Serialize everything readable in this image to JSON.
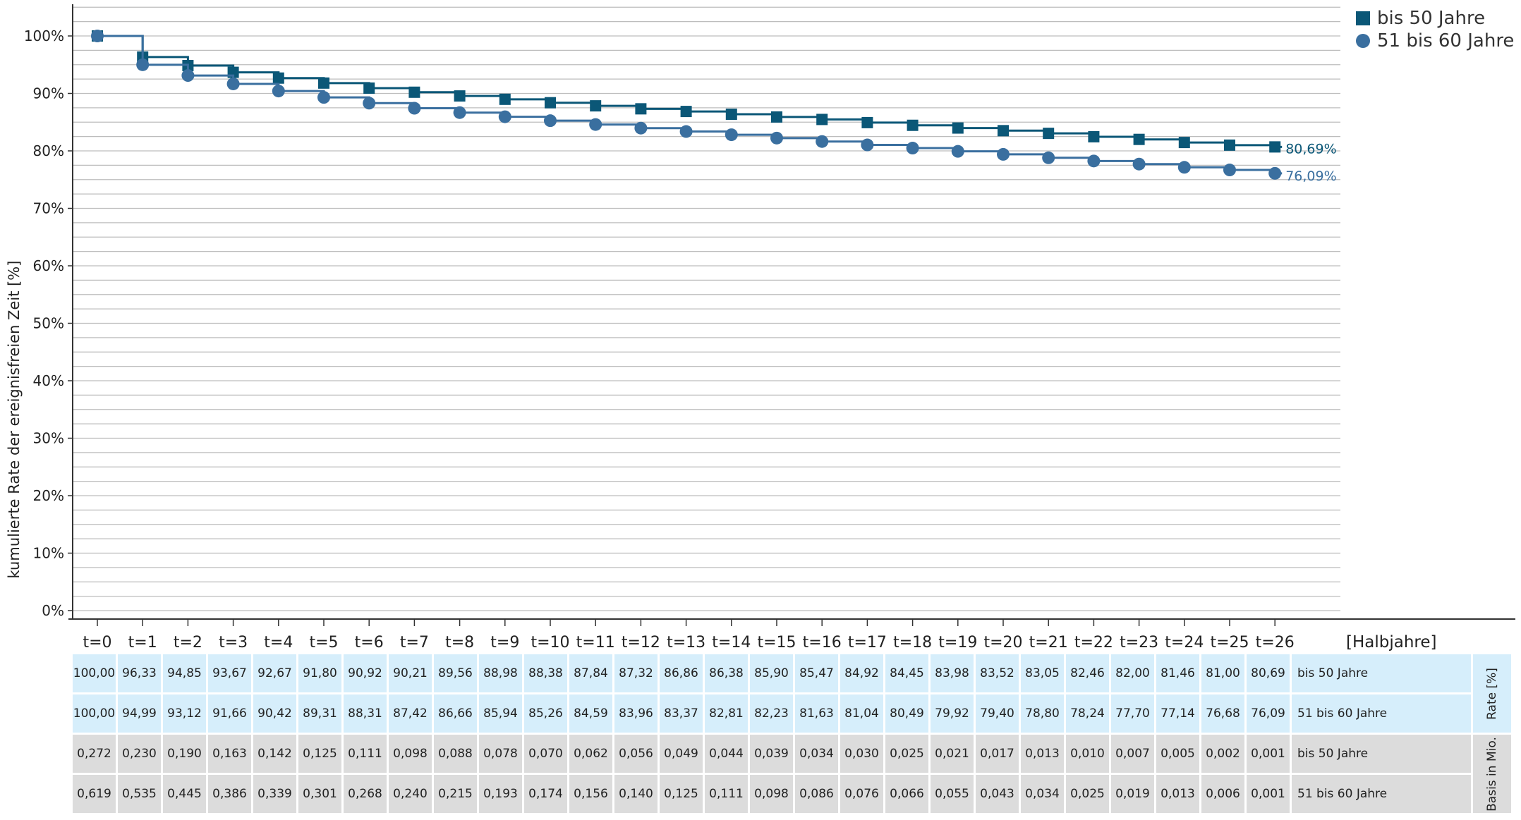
{
  "chart_data": {
    "type": "line",
    "step": true,
    "ylabel": "kumulierte Rate der ereignisfreien Zeit [%]",
    "xlabel": "[Halbjahre]",
    "ylim": [
      0,
      100
    ],
    "y_ticks": [
      "0%",
      "10%",
      "20%",
      "30%",
      "40%",
      "50%",
      "60%",
      "70%",
      "80%",
      "90%",
      "100%"
    ],
    "x": [
      "t=0",
      "t=1",
      "t=2",
      "t=3",
      "t=4",
      "t=5",
      "t=6",
      "t=7",
      "t=8",
      "t=9",
      "t=10",
      "t=11",
      "t=12",
      "t=13",
      "t=14",
      "t=15",
      "t=16",
      "t=17",
      "t=18",
      "t=19",
      "t=20",
      "t=21",
      "t=22",
      "t=23",
      "t=24",
      "t=25",
      "t=26"
    ],
    "grid": true,
    "legend_position": "top-right",
    "series": [
      {
        "name": "bis 50 Jahre",
        "marker": "square",
        "color": "#0b5777",
        "end_label": "80,69%",
        "values": [
          100.0,
          96.33,
          94.85,
          93.67,
          92.67,
          91.8,
          90.92,
          90.21,
          89.56,
          88.98,
          88.38,
          87.84,
          87.32,
          86.86,
          86.38,
          85.9,
          85.47,
          84.92,
          84.45,
          83.98,
          83.52,
          83.05,
          82.46,
          82.0,
          81.46,
          81.0,
          80.69
        ]
      },
      {
        "name": "51 bis 60 Jahre",
        "marker": "circle",
        "color": "#3a6f9f",
        "end_label": "76,09%",
        "values": [
          100.0,
          94.99,
          93.12,
          91.66,
          90.42,
          89.31,
          88.31,
          87.42,
          86.66,
          85.94,
          85.26,
          84.59,
          83.96,
          83.37,
          82.81,
          82.23,
          81.63,
          81.04,
          80.49,
          79.92,
          79.4,
          78.8,
          78.24,
          77.7,
          77.14,
          76.68,
          76.09
        ]
      }
    ],
    "table": {
      "rows": [
        {
          "group": "rate",
          "label": "bis 50 Jahre",
          "cells": [
            "100,00",
            "96,33",
            "94,85",
            "93,67",
            "92,67",
            "91,80",
            "90,92",
            "90,21",
            "89,56",
            "88,98",
            "88,38",
            "87,84",
            "87,32",
            "86,86",
            "86,38",
            "85,90",
            "85,47",
            "84,92",
            "84,45",
            "83,98",
            "83,52",
            "83,05",
            "82,46",
            "82,00",
            "81,46",
            "81,00",
            "80,69"
          ]
        },
        {
          "group": "rate",
          "label": "51 bis 60 Jahre",
          "cells": [
            "100,00",
            "94,99",
            "93,12",
            "91,66",
            "90,42",
            "89,31",
            "88,31",
            "87,42",
            "86,66",
            "85,94",
            "85,26",
            "84,59",
            "83,96",
            "83,37",
            "82,81",
            "82,23",
            "81,63",
            "81,04",
            "80,49",
            "79,92",
            "79,40",
            "78,80",
            "78,24",
            "77,70",
            "77,14",
            "76,68",
            "76,09"
          ]
        },
        {
          "group": "basis",
          "label": "bis 50 Jahre",
          "cells": [
            "0,272",
            "0,230",
            "0,190",
            "0,163",
            "0,142",
            "0,125",
            "0,111",
            "0,098",
            "0,088",
            "0,078",
            "0,070",
            "0,062",
            "0,056",
            "0,049",
            "0,044",
            "0,039",
            "0,034",
            "0,030",
            "0,025",
            "0,021",
            "0,017",
            "0,013",
            "0,010",
            "0,007",
            "0,005",
            "0,002",
            "0,001"
          ]
        },
        {
          "group": "basis",
          "label": "51 bis 60 Jahre",
          "cells": [
            "0,619",
            "0,535",
            "0,445",
            "0,386",
            "0,339",
            "0,301",
            "0,268",
            "0,240",
            "0,215",
            "0,193",
            "0,174",
            "0,156",
            "0,140",
            "0,125",
            "0,111",
            "0,098",
            "0,086",
            "0,076",
            "0,066",
            "0,055",
            "0,043",
            "0,034",
            "0,025",
            "0,019",
            "0,013",
            "0,006",
            "0,001"
          ]
        }
      ],
      "group_labels": {
        "rate": "Rate [%]",
        "basis": "Basis in Mio."
      }
    }
  }
}
